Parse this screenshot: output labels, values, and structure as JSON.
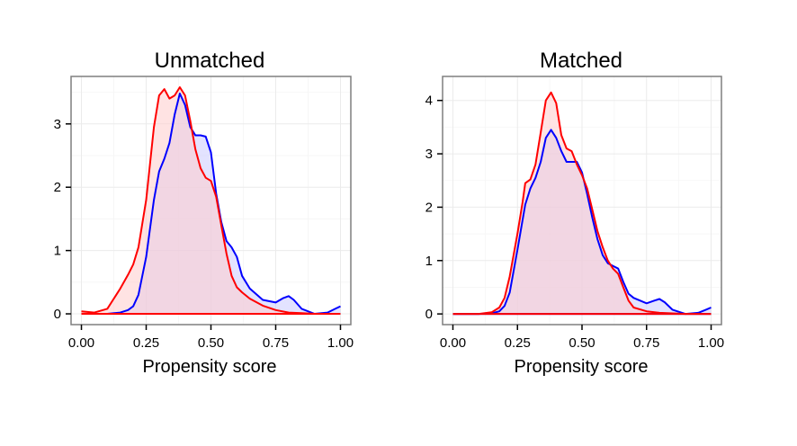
{
  "chart_data": [
    {
      "type": "area",
      "title": "Unmatched",
      "xlabel": "Propensity score",
      "ylabel": "",
      "xlim": [
        -0.04,
        1.04
      ],
      "ylim": [
        -0.17,
        3.75
      ],
      "x_ticks": [
        "0.00",
        "0.25",
        "0.50",
        "0.75",
        "1.00"
      ],
      "x_tick_values": [
        0,
        0.25,
        0.5,
        0.75,
        1.0
      ],
      "y_ticks": [
        "0",
        "1",
        "2",
        "3"
      ],
      "y_tick_values": [
        0,
        1,
        2,
        3
      ],
      "grid": true,
      "series": [
        {
          "color": "#ff0000",
          "fill": "#ffcccc",
          "x": [
            0.0,
            0.05,
            0.1,
            0.15,
            0.18,
            0.2,
            0.22,
            0.25,
            0.28,
            0.3,
            0.32,
            0.34,
            0.36,
            0.38,
            0.4,
            0.42,
            0.44,
            0.46,
            0.48,
            0.5,
            0.52,
            0.54,
            0.56,
            0.58,
            0.6,
            0.62,
            0.65,
            0.7,
            0.75,
            0.8,
            0.85,
            0.9,
            0.95,
            1.0
          ],
          "y": [
            0.04,
            0.02,
            0.08,
            0.4,
            0.62,
            0.78,
            1.05,
            1.8,
            2.95,
            3.45,
            3.55,
            3.4,
            3.45,
            3.58,
            3.45,
            3.05,
            2.6,
            2.3,
            2.15,
            2.1,
            1.85,
            1.4,
            0.95,
            0.6,
            0.42,
            0.34,
            0.24,
            0.13,
            0.06,
            0.02,
            0.01,
            0.0,
            0.0,
            0.0
          ]
        },
        {
          "color": "#0000ff",
          "fill": "#ccccff",
          "x": [
            0.0,
            0.1,
            0.15,
            0.18,
            0.2,
            0.22,
            0.25,
            0.28,
            0.3,
            0.32,
            0.34,
            0.36,
            0.38,
            0.4,
            0.42,
            0.44,
            0.46,
            0.48,
            0.5,
            0.52,
            0.54,
            0.56,
            0.58,
            0.6,
            0.62,
            0.65,
            0.7,
            0.75,
            0.78,
            0.8,
            0.82,
            0.85,
            0.9,
            0.95,
            0.98,
            1.0
          ],
          "y": [
            0.0,
            0.0,
            0.02,
            0.06,
            0.12,
            0.3,
            0.9,
            1.8,
            2.25,
            2.45,
            2.7,
            3.15,
            3.48,
            3.3,
            2.95,
            2.82,
            2.82,
            2.8,
            2.55,
            1.9,
            1.45,
            1.15,
            1.05,
            0.9,
            0.6,
            0.4,
            0.22,
            0.18,
            0.25,
            0.28,
            0.22,
            0.08,
            0.0,
            0.02,
            0.08,
            0.12
          ]
        }
      ]
    },
    {
      "type": "area",
      "title": "Matched",
      "xlabel": "Propensity score",
      "ylabel": "",
      "xlim": [
        -0.04,
        1.04
      ],
      "ylim": [
        -0.2,
        4.45
      ],
      "x_ticks": [
        "0.00",
        "0.25",
        "0.50",
        "0.75",
        "1.00"
      ],
      "x_tick_values": [
        0,
        0.25,
        0.5,
        0.75,
        1.0
      ],
      "y_ticks": [
        "0",
        "1",
        "2",
        "3",
        "4"
      ],
      "y_tick_values": [
        0,
        1,
        2,
        3,
        4
      ],
      "grid": true,
      "series": [
        {
          "color": "#ff0000",
          "fill": "#ffcccc",
          "x": [
            0.0,
            0.1,
            0.15,
            0.18,
            0.2,
            0.22,
            0.25,
            0.27,
            0.28,
            0.3,
            0.32,
            0.34,
            0.36,
            0.38,
            0.4,
            0.42,
            0.44,
            0.46,
            0.48,
            0.5,
            0.52,
            0.54,
            0.56,
            0.58,
            0.6,
            0.62,
            0.64,
            0.66,
            0.68,
            0.7,
            0.75,
            0.8,
            0.85,
            0.9,
            0.95,
            1.0
          ],
          "y": [
            0.0,
            0.0,
            0.03,
            0.12,
            0.3,
            0.7,
            1.5,
            2.1,
            2.45,
            2.52,
            2.8,
            3.4,
            4.0,
            4.15,
            3.95,
            3.35,
            3.1,
            3.05,
            2.8,
            2.6,
            2.35,
            1.95,
            1.55,
            1.25,
            1.0,
            0.85,
            0.75,
            0.5,
            0.25,
            0.12,
            0.05,
            0.02,
            0.01,
            0.0,
            0.0,
            0.0
          ]
        },
        {
          "color": "#0000ff",
          "fill": "#ccccff",
          "x": [
            0.0,
            0.1,
            0.15,
            0.18,
            0.2,
            0.22,
            0.25,
            0.28,
            0.3,
            0.32,
            0.34,
            0.36,
            0.38,
            0.4,
            0.42,
            0.44,
            0.46,
            0.48,
            0.5,
            0.52,
            0.54,
            0.56,
            0.58,
            0.6,
            0.62,
            0.64,
            0.66,
            0.68,
            0.7,
            0.75,
            0.78,
            0.8,
            0.82,
            0.85,
            0.9,
            0.95,
            0.98,
            1.0
          ],
          "y": [
            0.0,
            0.0,
            0.01,
            0.05,
            0.15,
            0.4,
            1.2,
            2.05,
            2.35,
            2.55,
            2.85,
            3.3,
            3.45,
            3.3,
            3.05,
            2.85,
            2.85,
            2.85,
            2.65,
            2.25,
            1.8,
            1.4,
            1.1,
            0.95,
            0.9,
            0.85,
            0.6,
            0.38,
            0.3,
            0.2,
            0.25,
            0.28,
            0.22,
            0.08,
            0.0,
            0.02,
            0.08,
            0.12
          ]
        }
      ]
    }
  ]
}
